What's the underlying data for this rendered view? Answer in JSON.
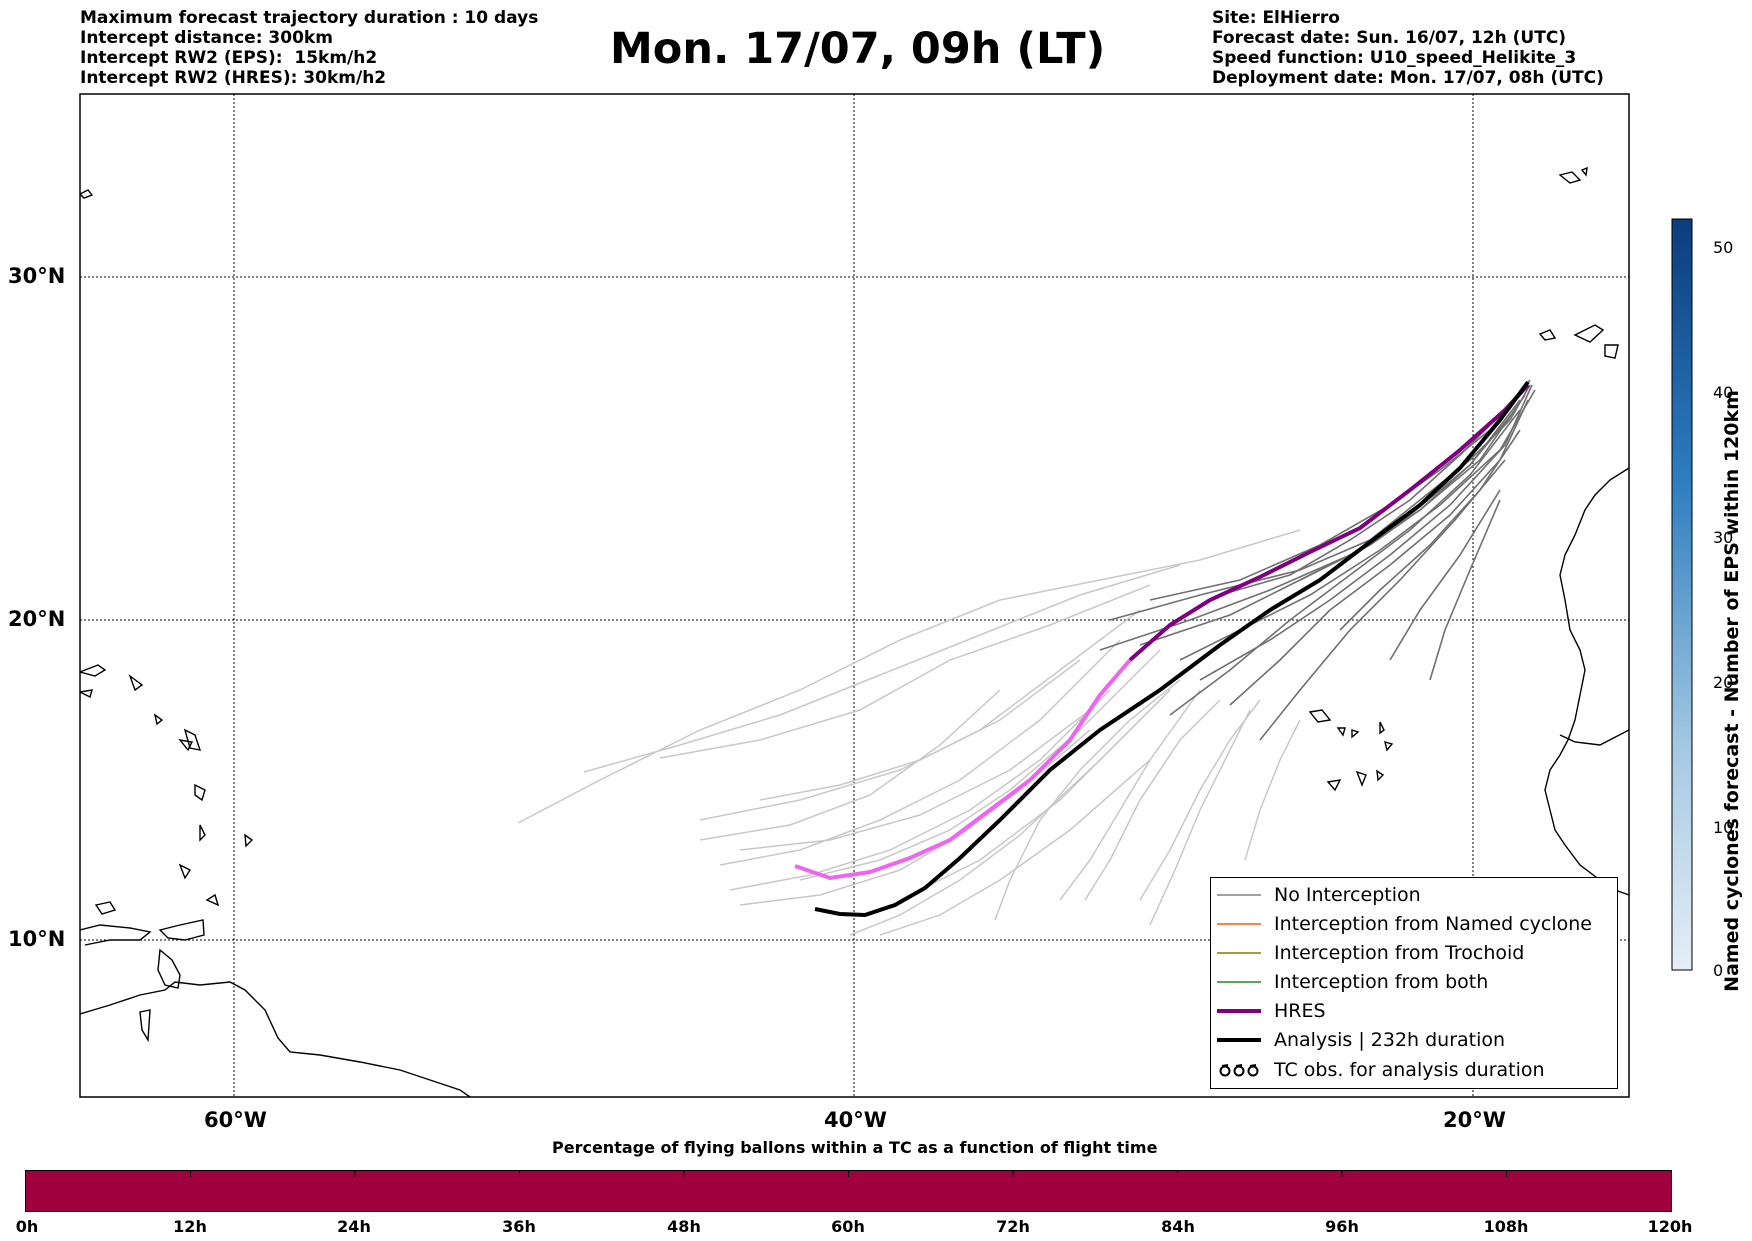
{
  "header": {
    "left": [
      "Maximum forecast trajectory duration : 10 days",
      "Intercept distance: 300km",
      "Intercept RW2 (EPS):  15km/h2",
      "Intercept RW2 (HRES): 30km/h2"
    ],
    "title": "Mon. 17/07, 09h (LT)",
    "right": [
      "Site: ElHierro",
      "Forecast date: Sun. 16/07, 12h (UTC)",
      "Speed function: U10_speed_Helikite_3",
      "Deployment date: Mon. 17/07, 08h (UTC)"
    ]
  },
  "axes": {
    "lat_labels": [
      "30°N",
      "20°N",
      "10°N"
    ],
    "lon_labels": [
      "60°W",
      "40°W",
      "20°W"
    ]
  },
  "legend": {
    "items": [
      {
        "label": "No Interception",
        "color": "#808080",
        "style": "thin"
      },
      {
        "label": "Interception from Named cyclone",
        "color": "#ff5a14",
        "style": "thin"
      },
      {
        "label": "Interception from Trochoid",
        "color": "#808000",
        "style": "thin"
      },
      {
        "label": "Interception from both",
        "color": "#228b22",
        "style": "thin"
      },
      {
        "label": "HRES",
        "color": "#800080",
        "style": "thick"
      },
      {
        "label": "Analysis | 232h duration",
        "color": "#000000",
        "style": "thick"
      },
      {
        "label": "TC obs. for analysis duration",
        "color": "#000000",
        "style": "symbol"
      }
    ]
  },
  "bottom_colorbar": {
    "title": "Percentage of flying ballons within a TC as a function of flight time",
    "ticks": [
      "0h",
      "12h",
      "24h",
      "36h",
      "48h",
      "60h",
      "72h",
      "84h",
      "96h",
      "108h",
      "120h"
    ],
    "color": "#a0003e"
  },
  "side_colorbar": {
    "label": "Named cyclones forecast - Number of EPS within 120km",
    "ticks": [
      "50",
      "40",
      "30",
      "20",
      "10",
      "0"
    ],
    "color_top": "#0b3c7d",
    "color_bottom": "#e6eef8"
  }
}
